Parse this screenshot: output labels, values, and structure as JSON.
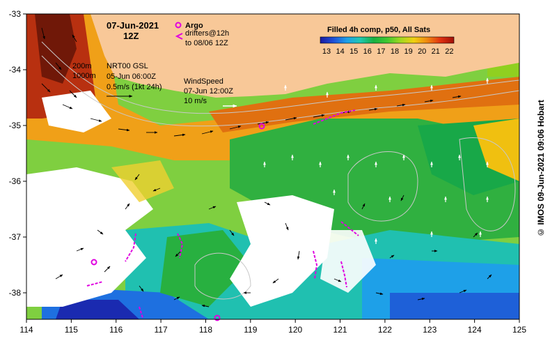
{
  "map": {
    "date_title": "07-Jun-2021",
    "time_title": "12Z",
    "legend": {
      "argo_label": "Argo",
      "drifters_line1": "drifters@12h",
      "drifters_line2": "to 08/06 12Z",
      "argo_color": "#e000e0",
      "drifter_color": "#e000e0"
    },
    "isobaths": [
      "200m",
      "1000m"
    ],
    "current_legend": {
      "line1": "NRT00 GSL",
      "line2": "05-Jun 06:00Z",
      "line3": "0.5m/s (1kt 24h)"
    },
    "wind_legend": {
      "line1": "WindSpeed",
      "line2": "07-Jun 12:00Z",
      "line3": "10 m/s"
    },
    "colorbar": {
      "title": "Filled 4h comp, p50, All Sats",
      "ticks": [
        "13",
        "14",
        "15",
        "16",
        "17",
        "18",
        "19",
        "20",
        "21",
        "22"
      ],
      "colors": [
        "#1a1aa0",
        "#1e50d8",
        "#1ea0e8",
        "#20c8b0",
        "#18b040",
        "#40c830",
        "#a0d820",
        "#f0d010",
        "#f08810",
        "#e03010",
        "#a01008"
      ]
    },
    "lon_ticks": [
      "114",
      "115",
      "116",
      "117",
      "118",
      "119",
      "120",
      "121",
      "122",
      "123",
      "124",
      "125"
    ],
    "lat_ticks": [
      "-33",
      "-34",
      "-35",
      "-36",
      "-37",
      "-38"
    ],
    "credit": "© IMOS 09-Jun-2021 09:06 Hobart",
    "land_color": "#f8c898"
  }
}
